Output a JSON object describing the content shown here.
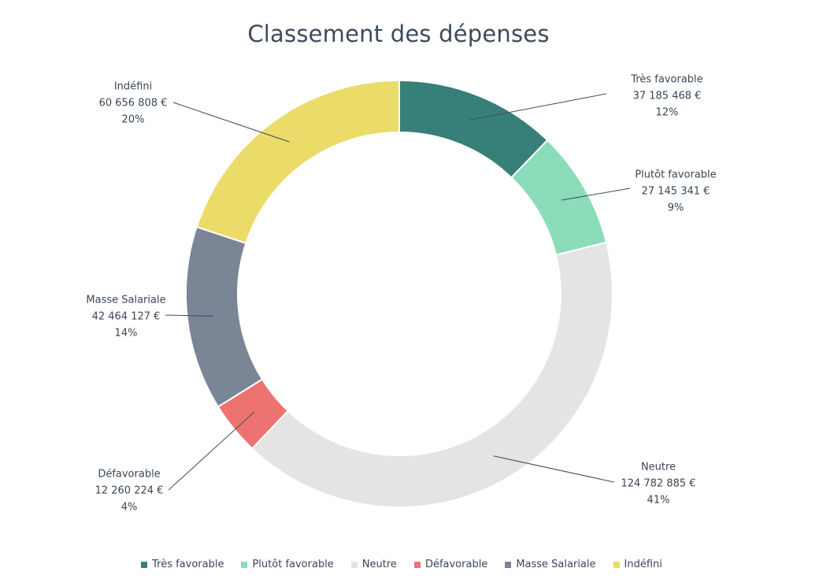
{
  "chart_data": {
    "type": "pie",
    "title": "Classement des dépenses",
    "variant": "donut",
    "legend_position": "bottom",
    "categories": [
      "Très favorable",
      "Plutôt favorable",
      "Neutre",
      "Défavorable",
      "Masse Salariale",
      "Indéfini"
    ],
    "values": [
      37185468,
      27145341,
      124782885,
      12260224,
      42464127,
      60656808
    ],
    "value_labels": [
      "37 185 468  €",
      "27 145 341  €",
      "124 782 885  €",
      "12 260 224  €",
      "42 464 127  €",
      "60 656 808  €"
    ],
    "percent_labels": [
      "12%",
      "9%",
      "41%",
      "4%",
      "14%",
      "20%"
    ],
    "colors": [
      "#37807a",
      "#8bdcb9",
      "#e4e4e4",
      "#ed7370",
      "#7a8596",
      "#ebdc69"
    ]
  }
}
